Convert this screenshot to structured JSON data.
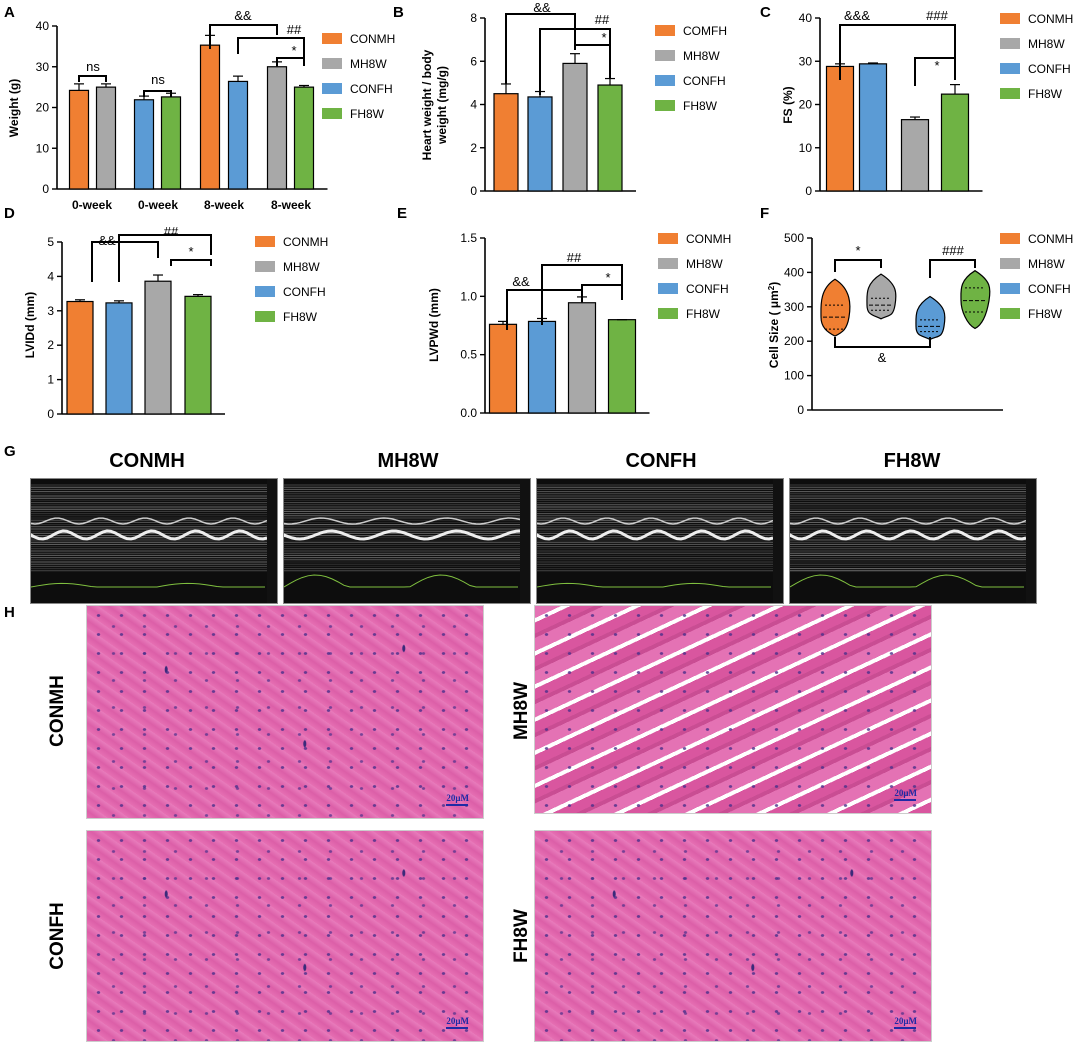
{
  "panels": {
    "A": "A",
    "B": "B",
    "C": "C",
    "D": "D",
    "E": "E",
    "F": "F",
    "G": "G",
    "H": "H"
  },
  "colors": {
    "orange": "#f07f32",
    "gray": "#a8a8a8",
    "blue": "#5b9bd5",
    "green": "#6fb344"
  },
  "chart_data": [
    {
      "id": "A",
      "type": "bar",
      "ylabel": "Weight (g)",
      "ylim": [
        0,
        40
      ],
      "yticks": [
        0,
        10,
        20,
        30,
        40
      ],
      "groups": [
        "0-week",
        "0-week",
        "8-week",
        "8-week"
      ],
      "bars": [
        {
          "series": "CONMH",
          "value": 24.2,
          "err": 1.6,
          "color": "#f07f32"
        },
        {
          "series": "MH8W",
          "value": 25.0,
          "err": 0.8,
          "color": "#a8a8a8"
        },
        {
          "series": "CONFH",
          "value": 21.9,
          "err": 0.9,
          "color": "#5b9bd5"
        },
        {
          "series": "FH8W",
          "value": 22.6,
          "err": 0.9,
          "color": "#6fb344"
        },
        {
          "series": "CONMH",
          "value": 35.3,
          "err": 2.4,
          "color": "#f07f32"
        },
        {
          "series": "CONFH",
          "value": 26.4,
          "err": 1.3,
          "color": "#5b9bd5"
        },
        {
          "series": "MH8W",
          "value": 30.0,
          "err": 1.2,
          "color": "#a8a8a8"
        },
        {
          "series": "FH8W",
          "value": 25.0,
          "err": 0.4,
          "color": "#6fb344"
        }
      ],
      "legend": [
        {
          "name": "CONMH",
          "color": "#f07f32"
        },
        {
          "name": "MH8W",
          "color": "#a8a8a8"
        },
        {
          "name": "CONFH",
          "color": "#5b9bd5"
        },
        {
          "name": "FH8W",
          "color": "#6fb344"
        }
      ],
      "annotations": [
        "ns",
        "ns",
        "&&",
        "##",
        "*"
      ]
    },
    {
      "id": "B",
      "type": "bar",
      "ylabel": "Heart weight / body weight (mg/g)",
      "ylim": [
        0,
        8
      ],
      "yticks": [
        0,
        2,
        4,
        6,
        8
      ],
      "bars": [
        {
          "series": "COMFH",
          "value": 4.5,
          "err": 0.45,
          "color": "#f07f32"
        },
        {
          "series": "CONFH",
          "value": 4.35,
          "err": 0.25,
          "color": "#5b9bd5"
        },
        {
          "series": "MH8W",
          "value": 5.9,
          "err": 0.45,
          "color": "#a8a8a8"
        },
        {
          "series": "FH8W",
          "value": 4.9,
          "err": 0.3,
          "color": "#6fb344"
        }
      ],
      "legend": [
        {
          "name": "COMFH",
          "color": "#f07f32"
        },
        {
          "name": "MH8W",
          "color": "#a8a8a8"
        },
        {
          "name": "CONFH",
          "color": "#5b9bd5"
        },
        {
          "name": "FH8W",
          "color": "#6fb344"
        }
      ],
      "annotations": [
        "&&",
        "##",
        "*"
      ]
    },
    {
      "id": "C",
      "type": "bar",
      "ylabel": "FS (%)",
      "ylim": [
        0,
        40
      ],
      "yticks": [
        0,
        10,
        20,
        30,
        40
      ],
      "bars": [
        {
          "series": "CONMH",
          "value": 28.8,
          "err": 0.6,
          "color": "#f07f32"
        },
        {
          "series": "CONFH",
          "value": 29.4,
          "err": 0.2,
          "color": "#5b9bd5"
        },
        {
          "series": "MH8W",
          "value": 16.5,
          "err": 0.6,
          "color": "#a8a8a8"
        },
        {
          "series": "FH8W",
          "value": 22.4,
          "err": 2.2,
          "color": "#6fb344"
        }
      ],
      "legend": [
        {
          "name": "CONMH",
          "color": "#f07f32"
        },
        {
          "name": "MH8W",
          "color": "#a8a8a8"
        },
        {
          "name": "CONFH",
          "color": "#5b9bd5"
        },
        {
          "name": "FH8W",
          "color": "#6fb344"
        }
      ],
      "annotations": [
        "&&&",
        "###",
        "*"
      ]
    },
    {
      "id": "D",
      "type": "bar",
      "ylabel": "LVIDd (mm)",
      "ylim": [
        0,
        5
      ],
      "yticks": [
        0,
        1,
        2,
        3,
        4,
        5
      ],
      "bars": [
        {
          "series": "CONMH",
          "value": 3.27,
          "err": 0.05,
          "color": "#f07f32"
        },
        {
          "series": "CONFH",
          "value": 3.23,
          "err": 0.06,
          "color": "#5b9bd5"
        },
        {
          "series": "MH8W",
          "value": 3.86,
          "err": 0.18,
          "color": "#a8a8a8"
        },
        {
          "series": "FH8W",
          "value": 3.42,
          "err": 0.05,
          "color": "#6fb344"
        }
      ],
      "legend": [
        {
          "name": "CONMH",
          "color": "#f07f32"
        },
        {
          "name": "MH8W",
          "color": "#a8a8a8"
        },
        {
          "name": "CONFH",
          "color": "#5b9bd5"
        },
        {
          "name": "FH8W",
          "color": "#6fb344"
        }
      ],
      "annotations": [
        "&&",
        "##",
        "*"
      ]
    },
    {
      "id": "E",
      "type": "bar",
      "ylabel": "LVPWd (mm)",
      "ylim": [
        0,
        1.5
      ],
      "yticks": [
        "0.0",
        "0.5",
        "1.0",
        "1.5"
      ],
      "bars": [
        {
          "series": "CONMH",
          "value": 0.76,
          "err": 0.025,
          "color": "#f07f32"
        },
        {
          "series": "CONFH",
          "value": 0.785,
          "err": 0.025,
          "color": "#5b9bd5"
        },
        {
          "series": "MH8W",
          "value": 0.945,
          "err": 0.05,
          "color": "#a8a8a8"
        },
        {
          "series": "FH8W",
          "value": 0.8,
          "err": 0.0,
          "color": "#6fb344"
        }
      ],
      "legend": [
        {
          "name": "CONMH",
          "color": "#f07f32"
        },
        {
          "name": "MH8W",
          "color": "#a8a8a8"
        },
        {
          "name": "CONFH",
          "color": "#5b9bd5"
        },
        {
          "name": "FH8W",
          "color": "#6fb344"
        }
      ],
      "annotations": [
        "&&",
        "##",
        "*"
      ]
    },
    {
      "id": "F",
      "type": "violin",
      "ylabel": "Cell Size ( μm²)",
      "ylim": [
        0,
        500
      ],
      "yticks": [
        0,
        100,
        200,
        300,
        400,
        500
      ],
      "violins": [
        {
          "series": "CONMH",
          "min": 215,
          "max": 380,
          "median": 270,
          "q1": 235,
          "q3": 305,
          "color": "#f07f32"
        },
        {
          "series": "MH8W",
          "min": 265,
          "max": 395,
          "median": 305,
          "q1": 290,
          "q3": 325,
          "color": "#a8a8a8"
        },
        {
          "series": "CONFH",
          "min": 205,
          "max": 330,
          "median": 243,
          "q1": 228,
          "q3": 262,
          "color": "#5b9bd5"
        },
        {
          "series": "FH8W",
          "min": 237,
          "max": 405,
          "median": 318,
          "q1": 285,
          "q3": 355,
          "color": "#6fb344"
        }
      ],
      "legend": [
        {
          "name": "CONMH",
          "color": "#f07f32"
        },
        {
          "name": "MH8W",
          "color": "#a8a8a8"
        },
        {
          "name": "CONFH",
          "color": "#5b9bd5"
        },
        {
          "name": "FH8W",
          "color": "#6fb344"
        }
      ],
      "annotations": [
        "*",
        "###",
        "&"
      ]
    }
  ],
  "echo": {
    "titles": [
      "CONMH",
      "MH8W",
      "CONFH",
      "FH8W"
    ]
  },
  "histology": {
    "labels": [
      "CONMH",
      "MH8W",
      "CONFH",
      "FH8W"
    ],
    "scale": "20μM"
  }
}
